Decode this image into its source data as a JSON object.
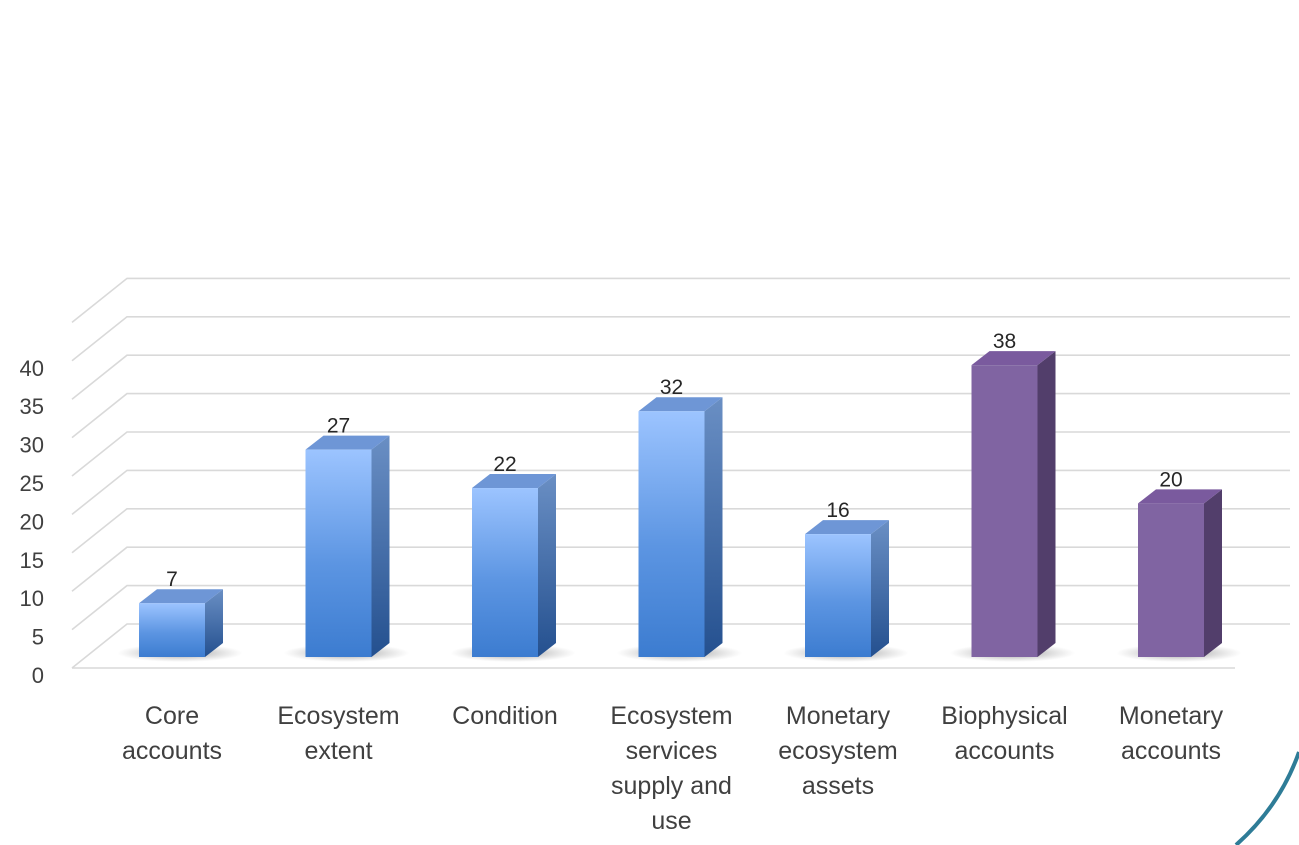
{
  "chart_data": {
    "type": "bar",
    "style": "3d-column",
    "title": "",
    "xlabel": "",
    "ylabel": "",
    "ylim": [
      0,
      40
    ],
    "yticks": [
      0,
      5,
      10,
      15,
      20,
      25,
      30,
      35,
      40
    ],
    "grid": true,
    "legend": "none",
    "categories": [
      [
        "Core",
        "accounts"
      ],
      [
        "Ecosystem",
        "extent"
      ],
      [
        "Condition"
      ],
      [
        "Ecosystem",
        "services",
        "supply and",
        "use"
      ],
      [
        "Monetary",
        "ecosystem",
        "assets"
      ],
      [
        "Biophysical",
        "accounts"
      ],
      [
        "Monetary",
        "accounts"
      ]
    ],
    "values": [
      7,
      27,
      22,
      32,
      16,
      38,
      20
    ],
    "value_labels": [
      "7",
      "27",
      "22",
      "32",
      "16",
      "38",
      "20"
    ],
    "bar_colors": [
      "#4a86d6",
      "#4a86d6",
      "#4a86d6",
      "#4a86d6",
      "#4a86d6",
      "#8064a2",
      "#8064a2"
    ],
    "colors": {
      "blue_top": "#99c2ff",
      "blue_bottom": "#3f7fd0",
      "purple_front": "#8064a2",
      "grid": "#d9d9d9",
      "decor_arc": "#2e7c97"
    }
  }
}
